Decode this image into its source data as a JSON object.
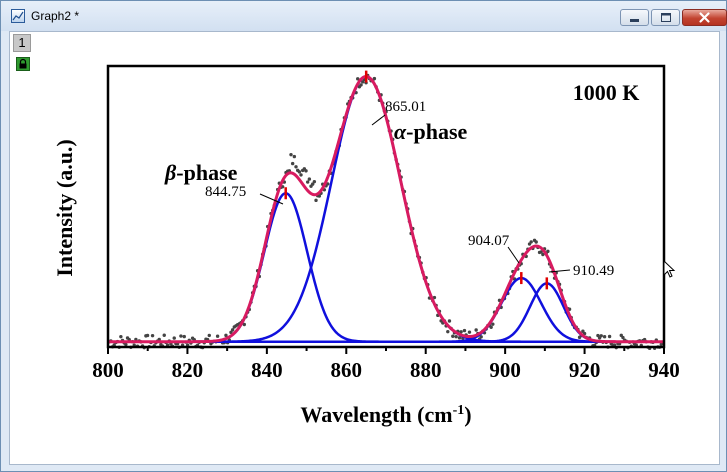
{
  "window": {
    "title": "Graph2 *",
    "layer_tab": "1",
    "icons": [
      "app-icon",
      "minimize-icon",
      "maximize-icon",
      "close-icon",
      "lock-icon",
      "cursor-icon"
    ]
  },
  "chart_data": {
    "type": "line",
    "annotation_title": "1000 K",
    "xlabel_base": "Wavelength (cm",
    "xlabel_sup": "-1",
    "xlabel_close": ")",
    "ylabel": "Intensity (a.u.)",
    "xlim": [
      800,
      940
    ],
    "ylim": [
      0,
      1.06
    ],
    "x_ticks": [
      "800",
      "820",
      "840",
      "860",
      "880",
      "900",
      "920",
      "940"
    ],
    "y_ticks_visible": false,
    "grid": false,
    "baseline": 0.02,
    "peaks": [
      {
        "center": 844.75,
        "label": "844.75",
        "amplitude": 0.56,
        "sigma": 5.4,
        "color": "#1010dd"
      },
      {
        "center": 865.01,
        "label": "865.01",
        "amplitude": 1.0,
        "sigma": 8.7,
        "color": "#1010dd"
      },
      {
        "center": 904.07,
        "label": "904.07",
        "amplitude": 0.24,
        "sigma": 5.0,
        "color": "#1010dd"
      },
      {
        "center": 910.49,
        "label": "910.49",
        "amplitude": 0.22,
        "sigma": 4.2,
        "color": "#1010dd"
      }
    ],
    "phase_labels": [
      {
        "symbol": "β",
        "text": "-phase"
      },
      {
        "symbol": "α",
        "text": "-phase"
      }
    ],
    "colors": {
      "raw_data": "#444444",
      "cumulative_fit": "#d81b60",
      "component_fit": "#1010dd",
      "peak_marker": "#e00000",
      "baseline": "#444444"
    }
  }
}
